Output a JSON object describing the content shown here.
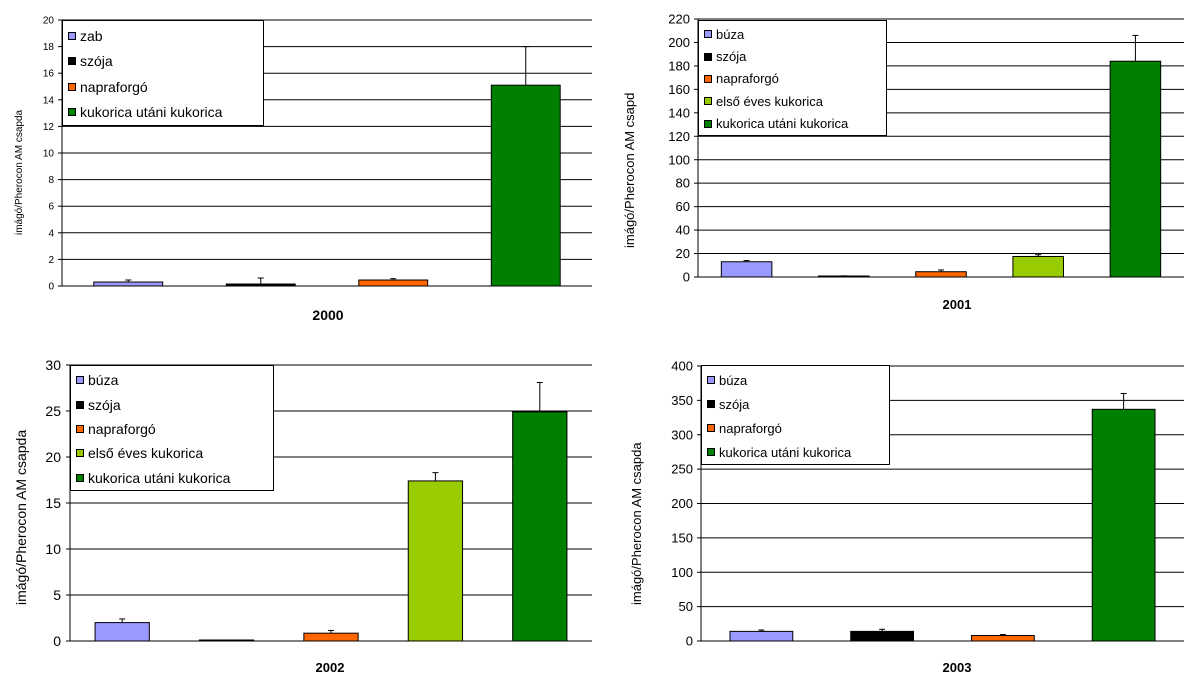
{
  "chart_data": [
    {
      "type": "bar",
      "title": "",
      "xlabel": "2000",
      "ylabel": "imágó/Pherocon AM csapda",
      "ylim": [
        0,
        20
      ],
      "ytick_step": 2,
      "grid": true,
      "legend_position": "top-left",
      "series": [
        {
          "name": "zab",
          "color": "#9999ff",
          "value": 0.3,
          "error": 0.15
        },
        {
          "name": "szója",
          "color": "#000000",
          "value": 0.15,
          "error": 0.45
        },
        {
          "name": "napraforgó",
          "color": "#ff6600",
          "value": 0.45,
          "error": 0.1
        },
        {
          "name": "kukorica utáni kukorica",
          "color": "#008000",
          "value": 15.1,
          "error": 2.9
        }
      ]
    },
    {
      "type": "bar",
      "title": "",
      "xlabel": "2001",
      "ylabel": "imágó/Pherocon AM csapd",
      "ylim": [
        0,
        220
      ],
      "ytick_step": 20,
      "grid": true,
      "legend_position": "top-left",
      "series": [
        {
          "name": "búza",
          "color": "#9999ff",
          "value": 13,
          "error": 1
        },
        {
          "name": "szója",
          "color": "#000000",
          "value": 0.5,
          "error": 0.5
        },
        {
          "name": "napraforgó",
          "color": "#ff6600",
          "value": 4.5,
          "error": 1.5
        },
        {
          "name": "első éves kukorica",
          "color": "#99cc00",
          "value": 17.5,
          "error": 1.5
        },
        {
          "name": "kukorica utáni kukorica",
          "color": "#008000",
          "value": 184,
          "error": 22
        }
      ]
    },
    {
      "type": "bar",
      "title": "",
      "xlabel": "2002",
      "ylabel": "imágó/Pherocon AM csapda",
      "ylim": [
        0,
        30
      ],
      "ytick_step": 5,
      "grid": true,
      "legend_position": "top-left",
      "series": [
        {
          "name": "búza",
          "color": "#9999ff",
          "value": 2,
          "error": 0.4
        },
        {
          "name": "szója",
          "color": "#000000",
          "value": 0.05,
          "error": 0
        },
        {
          "name": "napraforgó",
          "color": "#ff6600",
          "value": 0.85,
          "error": 0.3
        },
        {
          "name": "első éves kukorica",
          "color": "#99cc00",
          "value": 17.4,
          "error": 0.9
        },
        {
          "name": "kukorica utáni kukorica",
          "color": "#008000",
          "value": 24.9,
          "error": 3.2
        }
      ]
    },
    {
      "type": "bar",
      "title": "",
      "xlabel": "2003",
      "ylabel": "imágó/Pherocon AM csapda",
      "ylim": [
        0,
        400
      ],
      "ytick_step": 50,
      "grid": true,
      "legend_position": "top-left",
      "series": [
        {
          "name": "búza",
          "color": "#9999ff",
          "value": 14,
          "error": 2
        },
        {
          "name": "szója",
          "color": "#000000",
          "value": 14,
          "error": 3
        },
        {
          "name": "napraforgó",
          "color": "#ff6600",
          "value": 8,
          "error": 1.5
        },
        {
          "name": "kukorica utáni kukorica",
          "color": "#008000",
          "value": 337,
          "error": 23
        }
      ]
    }
  ]
}
